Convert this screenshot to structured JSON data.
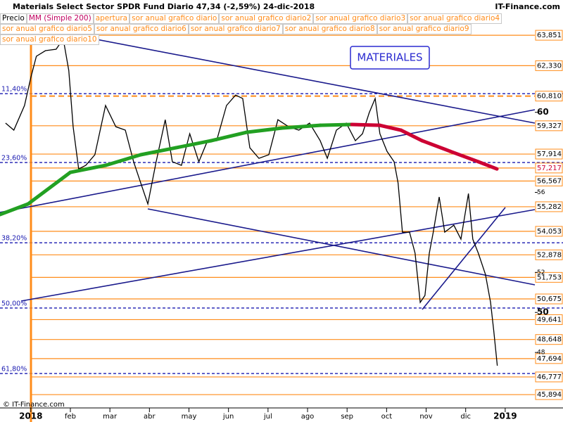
{
  "chart_data": {
    "type": "line",
    "title": "Materials Select Sector SPDR Fund  Diario  47,34 (-2,59%)  24-dic-2018",
    "source": "IT-Finance.com",
    "annotation": "MATERIALES",
    "footer": "© IT-Finance.com",
    "xlim": [
      -0.78,
      12.75
    ],
    "ylim": [
      45.58,
      63.96
    ],
    "xticks": [
      {
        "value": 0,
        "label": "2018"
      },
      {
        "value": 1,
        "label": "feb"
      },
      {
        "value": 2,
        "label": "mar"
      },
      {
        "value": 3,
        "label": "abr"
      },
      {
        "value": 4,
        "label": "may"
      },
      {
        "value": 5,
        "label": "jun"
      },
      {
        "value": 6,
        "label": "jul"
      },
      {
        "value": 7,
        "label": "ago"
      },
      {
        "value": 8,
        "label": "sep"
      },
      {
        "value": 9,
        "label": "oct"
      },
      {
        "value": 10,
        "label": "nov"
      },
      {
        "value": 11,
        "label": "dic"
      },
      {
        "value": 12,
        "label": "2019"
      }
    ],
    "yticks": [
      60,
      56,
      52,
      50,
      48
    ],
    "series": [
      {
        "name": "Precio",
        "color": "#000000",
        "x": [
          -0.64,
          -0.43,
          -0.16,
          0.0,
          0.14,
          0.37,
          0.64,
          0.82,
          0.96,
          1.07,
          1.21,
          1.39,
          1.62,
          1.89,
          2.15,
          2.39,
          2.6,
          2.78,
          2.96,
          3.17,
          3.4,
          3.58,
          3.81,
          4.02,
          4.25,
          4.47,
          4.7,
          4.95,
          5.18,
          5.36,
          5.54,
          5.77,
          6.02,
          6.25,
          6.52,
          6.78,
          7.05,
          7.32,
          7.5,
          7.73,
          7.98,
          8.21,
          8.39,
          8.56,
          8.71,
          8.83,
          9.01,
          9.19,
          9.29,
          9.4,
          9.58,
          9.72,
          9.85,
          9.97,
          10.08,
          10.18,
          10.33,
          10.47,
          10.7,
          10.88,
          11.07,
          11.18,
          11.32,
          11.5,
          11.63,
          11.71,
          11.8
        ],
        "values": [
          59.46,
          59.11,
          60.34,
          61.74,
          62.8,
          63.08,
          63.15,
          63.67,
          62.09,
          59.28,
          57.17,
          57.35,
          57.88,
          60.34,
          59.28,
          59.11,
          57.53,
          56.47,
          55.42,
          57.53,
          59.63,
          57.53,
          57.35,
          58.93,
          57.53,
          58.58,
          58.58,
          60.34,
          60.86,
          60.69,
          58.23,
          57.7,
          57.88,
          59.63,
          59.28,
          59.11,
          59.46,
          58.58,
          57.7,
          59.11,
          59.46,
          58.58,
          58.93,
          59.98,
          60.69,
          58.93,
          58.05,
          57.53,
          56.47,
          54.01,
          54.01,
          52.96,
          50.5,
          50.85,
          52.96,
          54.01,
          55.77,
          54.01,
          54.36,
          53.66,
          55.94,
          53.66,
          52.96,
          51.9,
          50.5,
          49.09,
          47.34
        ]
      },
      {
        "name": "MM (Simple 200)",
        "color": "#c00060",
        "up_color": "#22a022",
        "down_color": "#cc0033",
        "x": [
          -0.78,
          -0.07,
          1.0,
          1.89,
          2.78,
          3.67,
          4.56,
          5.45,
          6.34,
          7.32,
          8.12,
          8.83,
          9.36,
          9.9,
          10.61,
          11.32,
          11.79
        ],
        "values": [
          54.89,
          55.42,
          57.0,
          57.35,
          57.88,
          58.23,
          58.58,
          59.0,
          59.21,
          59.35,
          59.39,
          59.35,
          59.11,
          58.58,
          58.05,
          57.53,
          57.17
        ]
      }
    ],
    "legend_extra": [
      "apertura",
      "sor anual grafico diario",
      "sor anual grafico diario2",
      "sor anual grafico diario3",
      "sor anual grafico diario4",
      "sor anual grafico diario5",
      "sor anual grafico diario6",
      "sor anual grafico diario7",
      "sor anual grafico diario8",
      "sor anual grafico diario9",
      "sor anual grafico diario10"
    ],
    "levels": [
      {
        "value": 63.851,
        "label": "63,851"
      },
      {
        "value": 62.33,
        "label": "62,330"
      },
      {
        "value": 60.81,
        "label": "60,810",
        "dashed": true
      },
      {
        "value": 59.327,
        "label": "59,327"
      },
      {
        "value": 57.914,
        "label": "57,914"
      },
      {
        "value": 57.217,
        "label": "57,217",
        "color": "#cc0033"
      },
      {
        "value": 56.567,
        "label": "56,567"
      },
      {
        "value": 55.282,
        "label": "55,282"
      },
      {
        "value": 54.053,
        "label": "54,053"
      },
      {
        "value": 52.878,
        "label": "52,878"
      },
      {
        "value": 51.753,
        "label": "51,753"
      },
      {
        "value": 50.675,
        "label": "50,675"
      },
      {
        "value": 49.641,
        "label": "49,641"
      },
      {
        "value": 48.648,
        "label": "48,648"
      },
      {
        "value": 47.694,
        "label": "47,694"
      },
      {
        "value": 46.777,
        "label": "46,777"
      },
      {
        "value": 45.894,
        "label": "45,894"
      }
    ],
    "fib_levels": [
      {
        "price": 60.93,
        "text": "11,40%"
      },
      {
        "price": 57.49,
        "text": "23,60%"
      },
      {
        "price": 53.48,
        "text": "38,20%"
      },
      {
        "price": 50.22,
        "text": "50,00%"
      },
      {
        "price": 46.95,
        "text": "61,80%"
      }
    ]
  }
}
